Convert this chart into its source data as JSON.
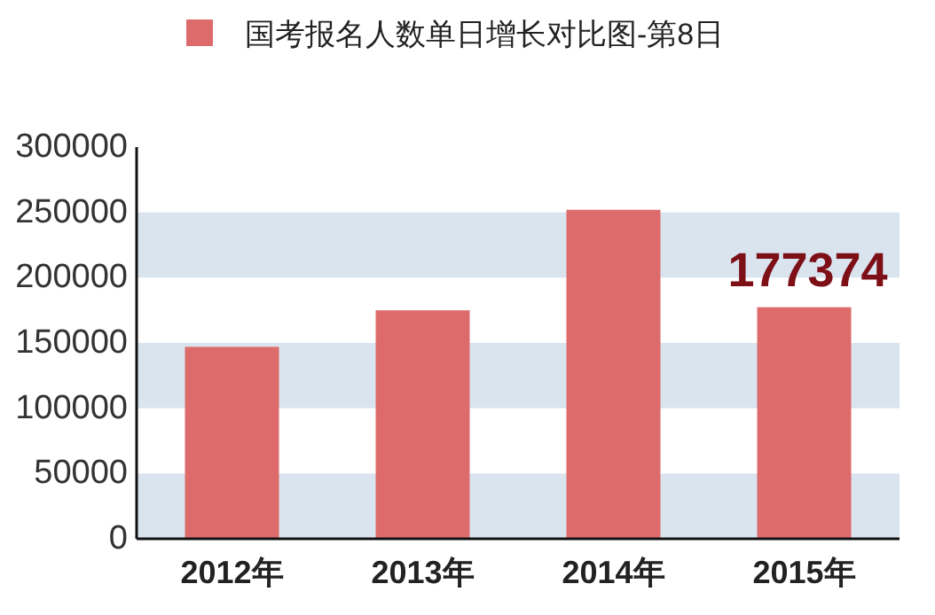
{
  "chart_data": {
    "type": "bar",
    "categories": [
      "2012年",
      "2013年",
      "2014年",
      "2015年"
    ],
    "series": [
      {
        "name": "国考报名人数单日增长对比图-第8日",
        "color": "#dd6b6c",
        "values": [
          147000,
          175000,
          252000,
          177374
        ],
        "value_labels": [
          null,
          null,
          null,
          "177374"
        ]
      }
    ],
    "ylim": [
      0,
      300000
    ],
    "yticks": [
      0,
      50000,
      100000,
      150000,
      200000,
      250000,
      300000
    ],
    "bands": [
      {
        "axis": "y",
        "from": 0,
        "to": 50000,
        "color": "#dae4ef"
      },
      {
        "axis": "y",
        "from": 100000,
        "to": 150000,
        "color": "#dae4ef"
      },
      {
        "axis": "y",
        "from": 200000,
        "to": 250000,
        "color": "#dae4ef"
      }
    ],
    "legend": "top"
  }
}
